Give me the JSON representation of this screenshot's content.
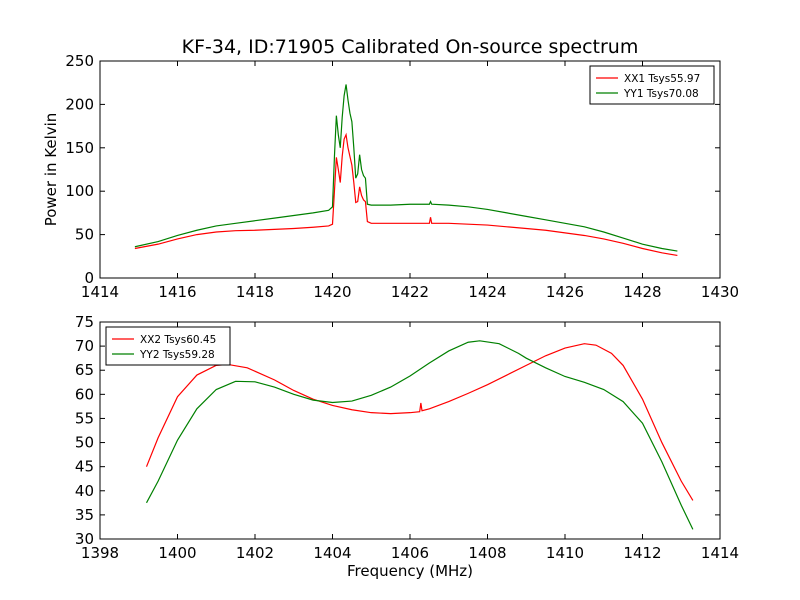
{
  "title": "KF-34, ID:71905 Calibrated On-source spectrum",
  "chart_data": [
    {
      "type": "line",
      "ylabel": "Power in Kelvin",
      "xlabel": "",
      "xlim": [
        1414,
        1430
      ],
      "ylim": [
        0,
        250
      ],
      "xticks": [
        1414,
        1416,
        1418,
        1420,
        1422,
        1424,
        1426,
        1428,
        1430
      ],
      "yticks": [
        0,
        50,
        100,
        150,
        200,
        250
      ],
      "legend_position": "top-right",
      "series": [
        {
          "name": "XX1 Tsys55.97",
          "color": "#ff0000",
          "points": [
            [
              1414.9,
              34
            ],
            [
              1415.5,
              39
            ],
            [
              1416.0,
              45
            ],
            [
              1416.5,
              50
            ],
            [
              1417.0,
              53
            ],
            [
              1417.5,
              54.5
            ],
            [
              1418.0,
              55
            ],
            [
              1418.5,
              56
            ],
            [
              1419.0,
              57
            ],
            [
              1419.5,
              58.5
            ],
            [
              1419.9,
              60
            ],
            [
              1420.0,
              62
            ],
            [
              1420.05,
              100
            ],
            [
              1420.1,
              139
            ],
            [
              1420.15,
              125
            ],
            [
              1420.2,
              110
            ],
            [
              1420.25,
              140
            ],
            [
              1420.3,
              160
            ],
            [
              1420.35,
              165
            ],
            [
              1420.4,
              150
            ],
            [
              1420.45,
              140
            ],
            [
              1420.5,
              130
            ],
            [
              1420.55,
              110
            ],
            [
              1420.6,
              87
            ],
            [
              1420.65,
              88
            ],
            [
              1420.7,
              105
            ],
            [
              1420.75,
              95
            ],
            [
              1420.8,
              90
            ],
            [
              1420.85,
              88
            ],
            [
              1420.9,
              65
            ],
            [
              1421.0,
              63
            ],
            [
              1421.5,
              63
            ],
            [
              1422.0,
              63
            ],
            [
              1422.5,
              63
            ],
            [
              1422.53,
              70
            ],
            [
              1422.56,
              63
            ],
            [
              1423.0,
              63
            ],
            [
              1423.5,
              62
            ],
            [
              1424.0,
              61
            ],
            [
              1424.5,
              59
            ],
            [
              1425.0,
              57
            ],
            [
              1425.5,
              55
            ],
            [
              1426.0,
              52
            ],
            [
              1426.5,
              49
            ],
            [
              1427.0,
              45
            ],
            [
              1427.5,
              40
            ],
            [
              1428.0,
              34
            ],
            [
              1428.5,
              29
            ],
            [
              1428.9,
              26
            ]
          ]
        },
        {
          "name": "YY1 Tsys70.08",
          "color": "#008000",
          "points": [
            [
              1414.9,
              36
            ],
            [
              1415.5,
              42
            ],
            [
              1416.0,
              49
            ],
            [
              1416.5,
              55
            ],
            [
              1417.0,
              60
            ],
            [
              1417.5,
              63
            ],
            [
              1418.0,
              66
            ],
            [
              1418.5,
              69
            ],
            [
              1419.0,
              72
            ],
            [
              1419.5,
              75
            ],
            [
              1419.9,
              78
            ],
            [
              1420.0,
              82
            ],
            [
              1420.05,
              140
            ],
            [
              1420.1,
              187
            ],
            [
              1420.15,
              165
            ],
            [
              1420.2,
              150
            ],
            [
              1420.25,
              185
            ],
            [
              1420.3,
              210
            ],
            [
              1420.35,
              223
            ],
            [
              1420.4,
              205
            ],
            [
              1420.45,
              190
            ],
            [
              1420.5,
              180
            ],
            [
              1420.55,
              150
            ],
            [
              1420.6,
              115
            ],
            [
              1420.65,
              120
            ],
            [
              1420.7,
              142
            ],
            [
              1420.75,
              125
            ],
            [
              1420.8,
              118
            ],
            [
              1420.85,
              115
            ],
            [
              1420.9,
              85
            ],
            [
              1421.0,
              84
            ],
            [
              1421.5,
              84
            ],
            [
              1422.0,
              85
            ],
            [
              1422.5,
              85
            ],
            [
              1422.53,
              88
            ],
            [
              1422.56,
              85
            ],
            [
              1423.0,
              84
            ],
            [
              1423.5,
              82
            ],
            [
              1424.0,
              79
            ],
            [
              1424.5,
              75
            ],
            [
              1425.0,
              71
            ],
            [
              1425.5,
              67
            ],
            [
              1426.0,
              63
            ],
            [
              1426.5,
              59
            ],
            [
              1427.0,
              53
            ],
            [
              1427.5,
              46
            ],
            [
              1428.0,
              39
            ],
            [
              1428.5,
              34
            ],
            [
              1428.9,
              31
            ]
          ]
        }
      ]
    },
    {
      "type": "line",
      "ylabel": "",
      "xlabel": "Frequency (MHz)",
      "xlim": [
        1398,
        1414
      ],
      "ylim": [
        30,
        75
      ],
      "xticks": [
        1398,
        1400,
        1402,
        1404,
        1406,
        1408,
        1410,
        1412,
        1414
      ],
      "yticks": [
        30,
        35,
        40,
        45,
        50,
        55,
        60,
        65,
        70,
        75
      ],
      "legend_position": "top-left",
      "series": [
        {
          "name": "XX2 Tsys60.45",
          "color": "#ff0000",
          "points": [
            [
              1399.2,
              45
            ],
            [
              1399.5,
              51
            ],
            [
              1400.0,
              59.5
            ],
            [
              1400.5,
              64
            ],
            [
              1401.0,
              66
            ],
            [
              1401.3,
              66.2
            ],
            [
              1401.8,
              65.5
            ],
            [
              1402.5,
              63
            ],
            [
              1403.0,
              60.8
            ],
            [
              1403.5,
              59
            ],
            [
              1404.0,
              57.7
            ],
            [
              1404.5,
              56.8
            ],
            [
              1405.0,
              56.2
            ],
            [
              1405.5,
              56
            ],
            [
              1406.0,
              56.2
            ],
            [
              1406.25,
              56.4
            ],
            [
              1406.28,
              58.2
            ],
            [
              1406.31,
              56.6
            ],
            [
              1406.5,
              57
            ],
            [
              1407.0,
              58.5
            ],
            [
              1407.5,
              60.2
            ],
            [
              1408.0,
              62
            ],
            [
              1408.5,
              64
            ],
            [
              1409.0,
              66
            ],
            [
              1409.5,
              68
            ],
            [
              1410.0,
              69.6
            ],
            [
              1410.5,
              70.5
            ],
            [
              1410.8,
              70.2
            ],
            [
              1411.2,
              68.5
            ],
            [
              1411.5,
              66
            ],
            [
              1412.0,
              59
            ],
            [
              1412.5,
              50
            ],
            [
              1413.0,
              42
            ],
            [
              1413.3,
              38
            ]
          ]
        },
        {
          "name": "YY2 Tsys59.28",
          "color": "#008000",
          "points": [
            [
              1399.2,
              37.5
            ],
            [
              1399.5,
              42
            ],
            [
              1400.0,
              50.5
            ],
            [
              1400.5,
              57
            ],
            [
              1401.0,
              61
            ],
            [
              1401.5,
              62.7
            ],
            [
              1402.0,
              62.6
            ],
            [
              1402.5,
              61.5
            ],
            [
              1403.0,
              60
            ],
            [
              1403.5,
              58.8
            ],
            [
              1404.0,
              58.3
            ],
            [
              1404.5,
              58.6
            ],
            [
              1405.0,
              59.8
            ],
            [
              1405.5,
              61.5
            ],
            [
              1406.0,
              63.8
            ],
            [
              1406.5,
              66.5
            ],
            [
              1407.0,
              69
            ],
            [
              1407.5,
              70.8
            ],
            [
              1407.8,
              71.1
            ],
            [
              1408.3,
              70.5
            ],
            [
              1408.8,
              68.5
            ],
            [
              1409.0,
              67.5
            ],
            [
              1409.5,
              65.5
            ],
            [
              1410.0,
              63.7
            ],
            [
              1410.5,
              62.5
            ],
            [
              1411.0,
              61
            ],
            [
              1411.5,
              58.5
            ],
            [
              1412.0,
              54
            ],
            [
              1412.5,
              46
            ],
            [
              1413.0,
              37
            ],
            [
              1413.3,
              32
            ]
          ]
        }
      ]
    }
  ]
}
